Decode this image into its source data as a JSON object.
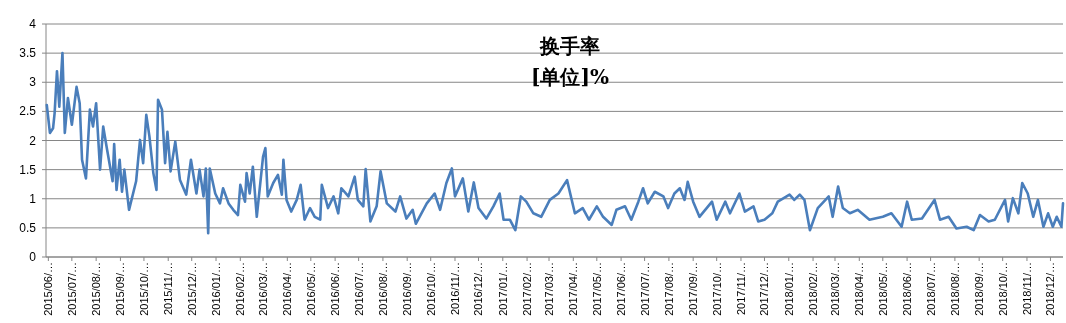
{
  "chart_data": {
    "type": "line",
    "title": "换手率",
    "subtitle": "[单位]%",
    "x": [
      "2015-05-30",
      "2015-06-03",
      "2015-06-07",
      "2015-06-09",
      "2015-06-12",
      "2015-06-15",
      "2015-06-19",
      "2015-06-22",
      "2015-06-26",
      "2015-07-01",
      "2015-07-07",
      "2015-07-11",
      "2015-07-14",
      "2015-07-19",
      "2015-07-24",
      "2015-07-28",
      "2015-08-01",
      "2015-08-06",
      "2015-08-10",
      "2015-08-15",
      "2015-08-22",
      "2015-08-24",
      "2015-08-27",
      "2015-08-31",
      "2015-09-03",
      "2015-09-06",
      "2015-09-12",
      "2015-09-21",
      "2015-09-26",
      "2015-09-30",
      "2015-10-04",
      "2015-10-08",
      "2015-10-13",
      "2015-10-17",
      "2015-10-19",
      "2015-10-24",
      "2015-10-28",
      "2015-10-31",
      "2015-11-04",
      "2015-11-10",
      "2015-11-16",
      "2015-11-24",
      "2015-11-30",
      "2015-12-07",
      "2015-12-11",
      "2015-12-16",
      "2015-12-19",
      "2015-12-22",
      "2015-12-24",
      "2015-12-31",
      "2016-01-06",
      "2016-01-10",
      "2016-01-17",
      "2016-01-23",
      "2016-01-29",
      "2016-02-01",
      "2016-02-07",
      "2016-02-09",
      "2016-02-13",
      "2016-02-17",
      "2016-02-22",
      "2016-03-01",
      "2016-03-04",
      "2016-03-07",
      "2016-03-14",
      "2016-03-20",
      "2016-03-25",
      "2016-03-27",
      "2016-03-31",
      "2016-04-06",
      "2016-04-13",
      "2016-04-18",
      "2016-04-23",
      "2016-04-30",
      "2016-05-06",
      "2016-05-13",
      "2016-05-15",
      "2016-05-23",
      "2016-05-30",
      "2016-06-05",
      "2016-06-09",
      "2016-06-18",
      "2016-06-26",
      "2016-06-30",
      "2016-07-07",
      "2016-07-10",
      "2016-07-16",
      "2016-07-24",
      "2016-07-29",
      "2016-08-06",
      "2016-08-17",
      "2016-08-23",
      "2016-08-31",
      "2016-09-08",
      "2016-09-12",
      "2016-09-26",
      "2016-10-06",
      "2016-10-13",
      "2016-10-21",
      "2016-10-28",
      "2016-11-01",
      "2016-11-11",
      "2016-11-18",
      "2016-11-25",
      "2016-12-01",
      "2016-12-11",
      "2016-12-20",
      "2016-12-28",
      "2017-01-02",
      "2017-01-10",
      "2017-01-17",
      "2017-01-24",
      "2017-01-31",
      "2017-02-09",
      "2017-02-19",
      "2017-03-02",
      "2017-03-13",
      "2017-03-24",
      "2017-04-03",
      "2017-04-13",
      "2017-04-21",
      "2017-05-01",
      "2017-05-09",
      "2017-05-20",
      "2017-05-26",
      "2017-06-06",
      "2017-06-14",
      "2017-06-23",
      "2017-06-29",
      "2017-07-05",
      "2017-07-14",
      "2017-07-25",
      "2017-07-31",
      "2017-08-08",
      "2017-08-15",
      "2017-08-21",
      "2017-08-25",
      "2017-09-01",
      "2017-09-09",
      "2017-09-25",
      "2017-10-01",
      "2017-10-12",
      "2017-10-18",
      "2017-10-30",
      "2017-11-06",
      "2017-11-17",
      "2017-11-23",
      "2017-12-01",
      "2017-12-11",
      "2017-12-18",
      "2018-01-02",
      "2018-01-08",
      "2018-01-15",
      "2018-01-21",
      "2018-01-28",
      "2018-02-07",
      "2018-02-21",
      "2018-02-26",
      "2018-03-05",
      "2018-03-11",
      "2018-03-20",
      "2018-03-30",
      "2018-04-14",
      "2018-05-01",
      "2018-05-12",
      "2018-05-25",
      "2018-06-01",
      "2018-06-07",
      "2018-06-20",
      "2018-07-06",
      "2018-07-13",
      "2018-07-24",
      "2018-08-03",
      "2018-08-16",
      "2018-08-25",
      "2018-09-02",
      "2018-09-13",
      "2018-09-21",
      "2018-10-04",
      "2018-10-08",
      "2018-10-14",
      "2018-10-21",
      "2018-10-26",
      "2018-11-02",
      "2018-11-09",
      "2018-11-15",
      "2018-11-22",
      "2018-11-28",
      "2018-12-04",
      "2018-12-09",
      "2018-12-15",
      "2018-12-17"
    ],
    "values": [
      2.61,
      2.13,
      2.21,
      2.47,
      3.19,
      2.58,
      3.5,
      2.13,
      2.73,
      2.27,
      2.92,
      2.64,
      1.67,
      1.35,
      2.53,
      2.24,
      2.64,
      1.5,
      2.24,
      1.84,
      1.3,
      1.94,
      1.15,
      1.67,
      1.12,
      1.5,
      0.81,
      1.3,
      2.01,
      1.61,
      2.44,
      2.07,
      1.44,
      1.15,
      2.7,
      2.53,
      1.61,
      2.15,
      1.47,
      1.98,
      1.32,
      1.07,
      1.67,
      1.09,
      1.5,
      1.04,
      1.52,
      0.41,
      1.52,
      1.09,
      0.92,
      1.18,
      0.92,
      0.81,
      0.72,
      1.24,
      0.95,
      1.44,
      1.09,
      1.55,
      0.69,
      1.72,
      1.87,
      1.04,
      1.27,
      1.41,
      1.07,
      1.67,
      0.98,
      0.78,
      0.98,
      1.24,
      0.64,
      0.84,
      0.69,
      0.64,
      1.24,
      0.84,
      1.04,
      0.75,
      1.18,
      1.04,
      1.38,
      0.98,
      0.87,
      1.51,
      0.61,
      0.87,
      1.47,
      0.92,
      0.78,
      1.04,
      0.66,
      0.81,
      0.57,
      0.92,
      1.09,
      0.81,
      1.27,
      1.52,
      1.04,
      1.35,
      0.78,
      1.28,
      0.84,
      0.66,
      0.87,
      1.09,
      0.64,
      0.64,
      0.46,
      1.04,
      0.95,
      0.75,
      0.69,
      0.98,
      1.09,
      1.32,
      0.75,
      0.84,
      0.64,
      0.87,
      0.69,
      0.55,
      0.81,
      0.87,
      0.64,
      0.95,
      1.18,
      0.92,
      1.12,
      1.04,
      0.84,
      1.09,
      1.18,
      0.98,
      1.29,
      0.95,
      0.69,
      0.95,
      0.64,
      0.95,
      0.75,
      1.09,
      0.78,
      0.87,
      0.61,
      0.64,
      0.75,
      0.95,
      1.07,
      0.98,
      1.07,
      0.98,
      0.46,
      0.84,
      1.04,
      0.69,
      1.21,
      0.84,
      0.75,
      0.81,
      0.64,
      0.69,
      0.75,
      0.52,
      0.95,
      0.64,
      0.66,
      0.98,
      0.64,
      0.69,
      0.49,
      0.52,
      0.46,
      0.72,
      0.61,
      0.64,
      0.98,
      0.61,
      1.01,
      0.75,
      1.27,
      1.09,
      0.69,
      0.98,
      0.52,
      0.75,
      0.52,
      0.69,
      0.52,
      0.92
    ],
    "color": "#4a7ebb",
    "xlim": [
      "2015-05-29",
      "2018-12-17"
    ],
    "xticks": [
      {
        "value": "2015-06-01",
        "label": "2015/06/…"
      },
      {
        "value": "2015-07-01",
        "label": "2015/07/…"
      },
      {
        "value": "2015-08-01",
        "label": "2015/08/…"
      },
      {
        "value": "2015-09-01",
        "label": "2015/09/…"
      },
      {
        "value": "2015-10-01",
        "label": "2015/10/…"
      },
      {
        "value": "2015-11-01",
        "label": "2015/11/…"
      },
      {
        "value": "2015-12-01",
        "label": "2015/12/…"
      },
      {
        "value": "2016-01-01",
        "label": "2016/01/…"
      },
      {
        "value": "2016-02-01",
        "label": "2016/02/…"
      },
      {
        "value": "2016-03-01",
        "label": "2016/03/…"
      },
      {
        "value": "2016-04-01",
        "label": "2016/04/…"
      },
      {
        "value": "2016-05-01",
        "label": "2016/05/…"
      },
      {
        "value": "2016-06-01",
        "label": "2016/06/…"
      },
      {
        "value": "2016-07-01",
        "label": "2016/07/…"
      },
      {
        "value": "2016-08-01",
        "label": "2016/08/…"
      },
      {
        "value": "2016-09-01",
        "label": "2016/09/…"
      },
      {
        "value": "2016-10-01",
        "label": "2016/10/…"
      },
      {
        "value": "2016-11-01",
        "label": "2016/11/…"
      },
      {
        "value": "2016-12-01",
        "label": "2016/12/…"
      },
      {
        "value": "2017-01-01",
        "label": "2017/01/…"
      },
      {
        "value": "2017-02-01",
        "label": "2017/02/…"
      },
      {
        "value": "2017-03-01",
        "label": "2017/03/…"
      },
      {
        "value": "2017-04-01",
        "label": "2017/04/…"
      },
      {
        "value": "2017-05-01",
        "label": "2017/05/…"
      },
      {
        "value": "2017-06-01",
        "label": "2017/06/…"
      },
      {
        "value": "2017-07-01",
        "label": "2017/07/…"
      },
      {
        "value": "2017-08-01",
        "label": "2017/08/…"
      },
      {
        "value": "2017-09-01",
        "label": "2017/09/…"
      },
      {
        "value": "2017-10-01",
        "label": "2017/10/…"
      },
      {
        "value": "2017-11-01",
        "label": "2017/11/…"
      },
      {
        "value": "2017-12-01",
        "label": "2017/12/…"
      },
      {
        "value": "2018-01-01",
        "label": "2018/01/…"
      },
      {
        "value": "2018-02-01",
        "label": "2018/02/…"
      },
      {
        "value": "2018-03-01",
        "label": "2018/03/…"
      },
      {
        "value": "2018-04-01",
        "label": "2018/04/…"
      },
      {
        "value": "2018-05-01",
        "label": "2018/05/…"
      },
      {
        "value": "2018-06-01",
        "label": "2018/06/…"
      },
      {
        "value": "2018-07-01",
        "label": "2018/07/…"
      },
      {
        "value": "2018-08-01",
        "label": "2018/08/…"
      },
      {
        "value": "2018-09-01",
        "label": "2018/09/…"
      },
      {
        "value": "2018-10-01",
        "label": "2018/10/…"
      },
      {
        "value": "2018-11-01",
        "label": "2018/11/…"
      },
      {
        "value": "2018-12-01",
        "label": "2018/12/…"
      }
    ],
    "ylim": [
      0,
      4
    ],
    "yticks": [
      0,
      0.5,
      1,
      1.5,
      2,
      2.5,
      3,
      3.5,
      4
    ],
    "grid": "y",
    "line_style": "solid",
    "marker": "none"
  }
}
